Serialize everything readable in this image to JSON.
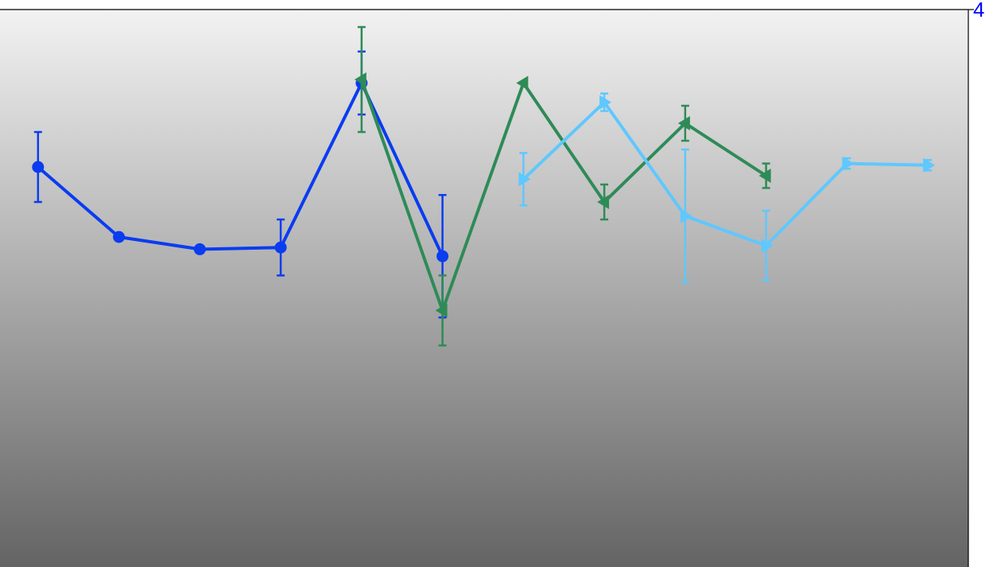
{
  "chart_data": {
    "type": "line",
    "title": "",
    "xlabel": "",
    "ylabel": "",
    "x": [
      0,
      1,
      2,
      3,
      4,
      5,
      6,
      7,
      8,
      9,
      10,
      11
    ],
    "xlim": [
      -0.47,
      11.5
    ],
    "ylim": [
      0,
      4
    ],
    "y_ticks_right": [
      {
        "value": 4,
        "label": "4"
      }
    ],
    "grid": false,
    "legend": "none",
    "background": {
      "gradient_top": "#f2f2f2",
      "gradient_bottom": "#646464"
    },
    "series": [
      {
        "color": "#0a3cf0",
        "marker": "circle",
        "points": [
          {
            "x": 0,
            "y": 3.1,
            "err": 0.2
          },
          {
            "x": 1,
            "y": 2.7,
            "err": null
          },
          {
            "x": 2,
            "y": 2.63,
            "err": null
          },
          {
            "x": 3,
            "y": 2.64,
            "err": 0.16
          },
          {
            "x": 4,
            "y": 3.58,
            "err": 0.18
          },
          {
            "x": 5,
            "y": 2.59,
            "err": 0.35
          }
        ]
      },
      {
        "color": "#2e8b57",
        "marker": "triangle-left",
        "points": [
          {
            "x": 4,
            "y": 3.6,
            "err": 0.3
          },
          {
            "x": 5,
            "y": 2.28,
            "err": 0.2
          },
          {
            "x": 6,
            "y": 3.58,
            "err": null
          },
          {
            "x": 7,
            "y": 2.9,
            "err": 0.1
          },
          {
            "x": 8,
            "y": 3.35,
            "err": 0.1
          },
          {
            "x": 9,
            "y": 3.05,
            "err": 0.07
          }
        ]
      },
      {
        "color": "#5ec8ff",
        "marker": "triangle-right",
        "points": [
          {
            "x": 6,
            "y": 3.03,
            "err": 0.15
          },
          {
            "x": 7,
            "y": 3.47,
            "err": 0.05
          },
          {
            "x": 8,
            "y": 2.82,
            "err": 0.38
          },
          {
            "x": 9,
            "y": 2.65,
            "err": 0.2
          },
          {
            "x": 10,
            "y": 3.12,
            "err": 0.03
          },
          {
            "x": 11,
            "y": 3.11,
            "err": 0.03
          }
        ]
      }
    ]
  }
}
